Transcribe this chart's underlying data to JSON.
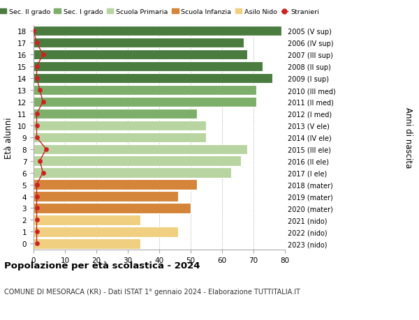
{
  "ages": [
    18,
    17,
    16,
    15,
    14,
    13,
    12,
    11,
    10,
    9,
    8,
    7,
    6,
    5,
    4,
    3,
    2,
    1,
    0
  ],
  "right_labels": [
    "2005 (V sup)",
    "2006 (IV sup)",
    "2007 (III sup)",
    "2008 (II sup)",
    "2009 (I sup)",
    "2010 (III med)",
    "2011 (II med)",
    "2012 (I med)",
    "2013 (V ele)",
    "2014 (IV ele)",
    "2015 (III ele)",
    "2016 (II ele)",
    "2017 (I ele)",
    "2018 (mater)",
    "2019 (mater)",
    "2020 (mater)",
    "2021 (nido)",
    "2022 (nido)",
    "2023 (nido)"
  ],
  "bar_values": [
    79,
    67,
    68,
    73,
    76,
    71,
    71,
    52,
    55,
    55,
    68,
    66,
    63,
    52,
    46,
    50,
    34,
    46,
    34
  ],
  "bar_colors": [
    "#4a7c3f",
    "#4a7c3f",
    "#4a7c3f",
    "#4a7c3f",
    "#4a7c3f",
    "#7daf6a",
    "#7daf6a",
    "#7daf6a",
    "#b8d4a0",
    "#b8d4a0",
    "#b8d4a0",
    "#b8d4a0",
    "#b8d4a0",
    "#d4853a",
    "#d4853a",
    "#d4853a",
    "#f0d080",
    "#f0d080",
    "#f0d080"
  ],
  "stranieri_values": [
    0,
    1,
    3,
    1,
    1,
    2,
    3,
    1,
    1,
    1,
    4,
    2,
    3,
    1,
    1,
    1,
    1,
    1,
    1
  ],
  "legend_labels": [
    "Sec. II grado",
    "Sec. I grado",
    "Scuola Primaria",
    "Scuola Infanzia",
    "Asilo Nido",
    "Stranieri"
  ],
  "legend_colors": [
    "#4a7c3f",
    "#7daf6a",
    "#b8d4a0",
    "#d4853a",
    "#f0d080",
    "#cc2222"
  ],
  "ylabel_left": "Età alunni",
  "ylabel_right": "Anni di nascita",
  "title": "Popolazione per età scolastica - 2024",
  "subtitle": "COMUNE DI MESORACA (KR) - Dati ISTAT 1° gennaio 2024 - Elaborazione TUTTITALIA.IT",
  "xlim": [
    0,
    80
  ],
  "xticks": [
    0,
    10,
    20,
    30,
    40,
    50,
    60,
    70,
    80
  ],
  "bar_height": 0.85
}
